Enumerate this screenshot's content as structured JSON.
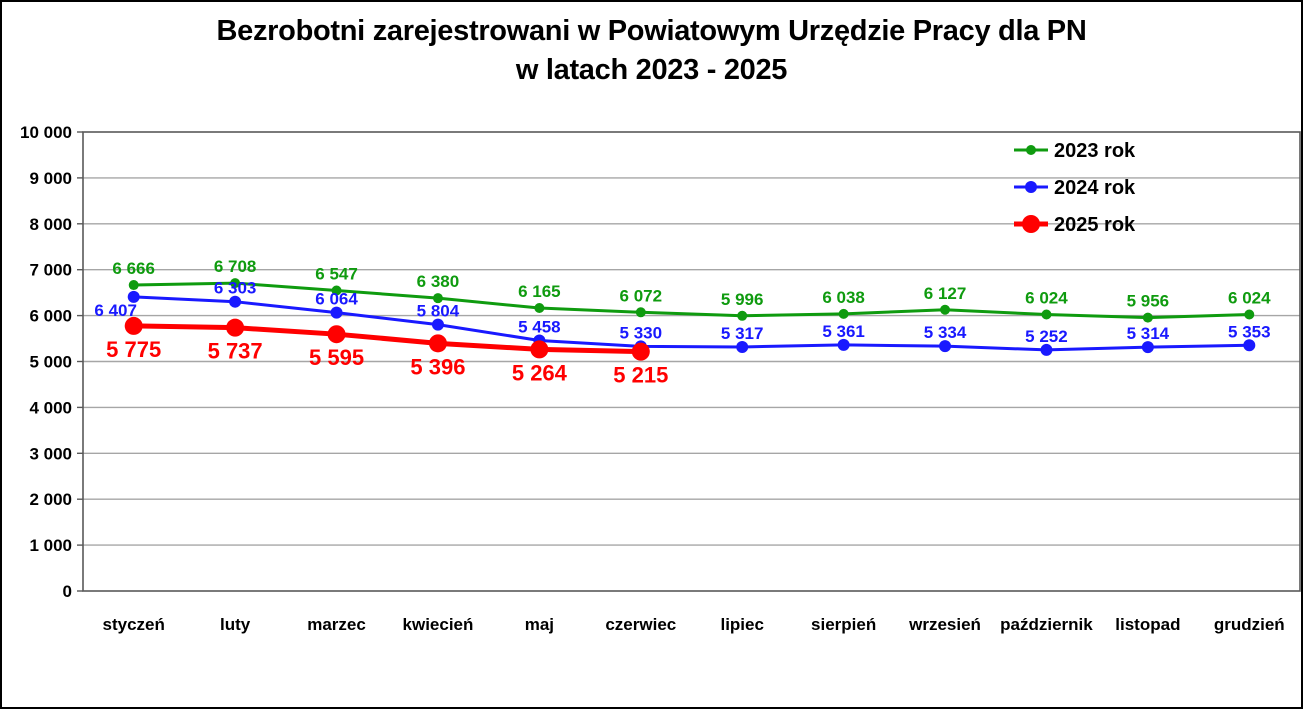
{
  "title": {
    "line1": "Bezrobotni zarejestrowani w Powiatowym Urzędzie Pracy dla PN",
    "line2": "w latach 2023 - 2025"
  },
  "chart_data": {
    "type": "line",
    "title": "Bezrobotni zarejestrowani w Powiatowym Urzędzie Pracy dla PN w latach 2023 - 2025",
    "xlabel": "",
    "ylabel": "",
    "ylim": [
      0,
      10000
    ],
    "ytick_step": 1000,
    "ytick_labels": [
      "0",
      "1 000",
      "2 000",
      "3 000",
      "4 000",
      "5 000",
      "6 000",
      "7 000",
      "8 000",
      "9 000",
      "10 000"
    ],
    "grid": "horizontal",
    "legend_position": "top-right",
    "colors": {
      "gridline": "#a6a6a6",
      "axis": "#595959",
      "text": "#000000",
      "background": "#ffffff"
    },
    "categories": [
      "styczeń",
      "luty",
      "marzec",
      "kwiecień",
      "maj",
      "czerwiec",
      "lipiec",
      "sierpień",
      "wrzesień",
      "październik",
      "listopad",
      "grudzień"
    ],
    "series": [
      {
        "name": "2023 rok",
        "color": "#0f9b0f",
        "values": [
          6666,
          6708,
          6547,
          6380,
          6165,
          6072,
          5996,
          6038,
          6127,
          6024,
          5956,
          6024
        ],
        "marker_radius": 5,
        "line_width": 3,
        "label": {
          "dx": 0,
          "dy": -11,
          "size": 17
        }
      },
      {
        "name": "2024 rok",
        "color": "#1919ff",
        "values": [
          6407,
          6303,
          6064,
          5804,
          5458,
          5330,
          5317,
          5361,
          5334,
          5252,
          5314,
          5353
        ],
        "marker_radius": 6,
        "line_width": 3,
        "label": {
          "dx": 0,
          "dy": -8,
          "size": 17
        },
        "label_overrides": {
          "0": {
            "dx": -18,
            "dy": 19
          }
        }
      },
      {
        "name": "2025 rok",
        "color": "#ff0000",
        "values": [
          5775,
          5737,
          5595,
          5396,
          5264,
          5215
        ],
        "marker_radius": 9,
        "line_width": 5,
        "label": {
          "dx": 0,
          "dy": 31,
          "size": 22
        }
      }
    ]
  }
}
